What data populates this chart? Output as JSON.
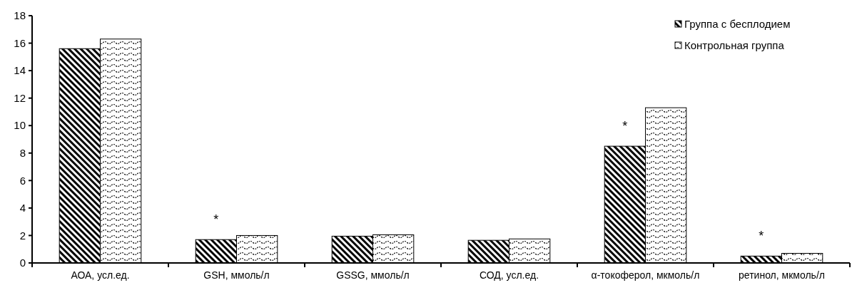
{
  "chart_data": {
    "type": "bar",
    "categories": [
      "АОА, усл.ед.",
      "GSH, ммоль/л",
      "GSSG, ммоль/л",
      "СОД, усл.ед.",
      "α-токоферол, мкмоль/л",
      "ретинол, мкмоль/л"
    ],
    "series": [
      {
        "name": "Группа с бесплодием",
        "color": "#000000",
        "values": [
          15.6,
          1.7,
          1.95,
          1.65,
          8.5,
          0.5
        ]
      },
      {
        "name": "Контрольная группа",
        "color": "#000000",
        "values": [
          16.3,
          2.0,
          2.05,
          1.75,
          11.3,
          0.7
        ]
      }
    ],
    "ylim": [
      0,
      18
    ],
    "yticks": [
      0,
      2,
      4,
      6,
      8,
      10,
      12,
      14,
      16,
      18
    ],
    "grid": false,
    "legend": "top right",
    "annotations": [
      {
        "text": "*",
        "x": "GSH, ммоль/л",
        "y": 1.7
      },
      {
        "text": "*",
        "x": "α-токоферол, мкмоль/л",
        "y": 8.5
      },
      {
        "text": "*",
        "x": "ретинол, мкмоль/л",
        "y": 0.5
      }
    ]
  }
}
